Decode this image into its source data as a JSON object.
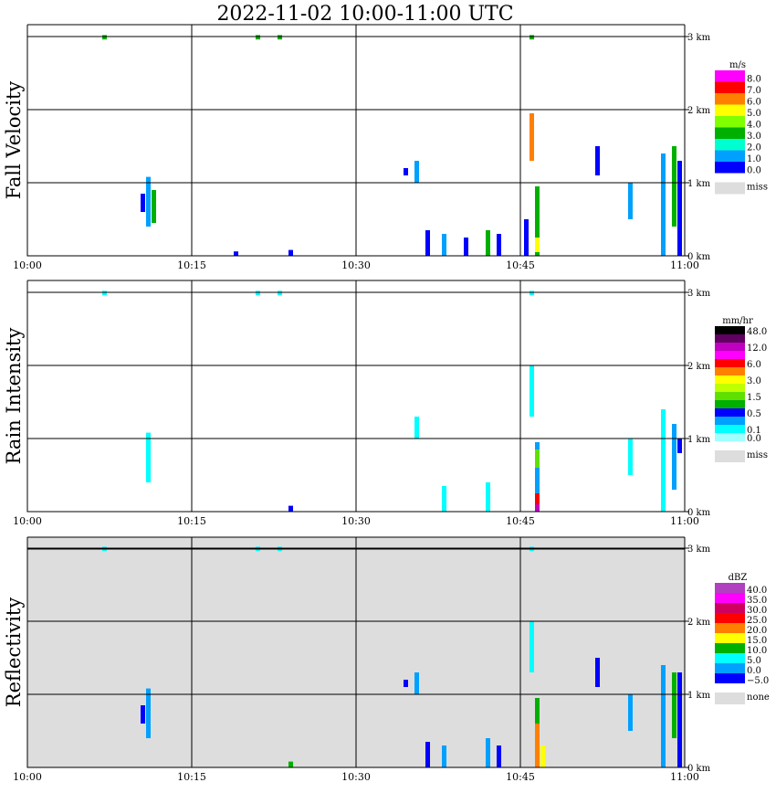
{
  "title": "2022-11-02   10:00-11:00 UTC",
  "colors": {
    "grid": "#000000",
    "missing": "#dddddd",
    "background": "#ffffff"
  },
  "chart_data": [
    {
      "type": "heatmap",
      "panel": "Fall Velocity",
      "ylabel": "Fall Velocity",
      "x_ticks": [
        "10:00",
        "10:15",
        "10:30",
        "10:45",
        "11:00"
      ],
      "y_ticks": [
        "0 km",
        "1 km",
        "2 km",
        "3 km"
      ],
      "xlim": [
        "10:00",
        "11:00"
      ],
      "ylim_km": [
        0,
        3.5
      ],
      "grid": true,
      "legend": {
        "unit": "m/s",
        "entries": [
          {
            "label": "8.0",
            "color": "#ff00ff"
          },
          {
            "label": "7.0",
            "color": "#ff0000"
          },
          {
            "label": "6.0",
            "color": "#ff8000"
          },
          {
            "label": "5.0",
            "color": "#ffff00"
          },
          {
            "label": "4.0",
            "color": "#80ff00"
          },
          {
            "label": "3.0",
            "color": "#00b000"
          },
          {
            "label": "2.0",
            "color": "#00ffd0"
          },
          {
            "label": "1.0",
            "color": "#00a0ff"
          },
          {
            "label": "0.0",
            "color": "#0000ff"
          }
        ],
        "missing_label": "miss"
      },
      "echoes": [
        {
          "time": "10:07",
          "top_km": 3.02,
          "bottom_km": 2.96,
          "color": "#00b000"
        },
        {
          "time": "10:21",
          "top_km": 3.02,
          "bottom_km": 2.96,
          "color": "#00b000"
        },
        {
          "time": "10:23",
          "top_km": 3.02,
          "bottom_km": 2.96,
          "color": "#00b000"
        },
        {
          "time": "10:46",
          "top_km": 3.02,
          "bottom_km": 2.96,
          "color": "#00b000"
        },
        {
          "time": "10:11",
          "top_km": 1.08,
          "bottom_km": 0.4,
          "color": "#00a0ff"
        },
        {
          "time": "10:11.5",
          "top_km": 0.9,
          "bottom_km": 0.45,
          "color": "#00b000"
        },
        {
          "time": "10:10.5",
          "top_km": 0.85,
          "bottom_km": 0.6,
          "color": "#0000ff"
        },
        {
          "time": "10:19",
          "top_km": 0.06,
          "bottom_km": 0.0,
          "color": "#0000ff"
        },
        {
          "time": "10:24",
          "top_km": 0.08,
          "bottom_km": 0.0,
          "color": "#0000ff"
        },
        {
          "time": "10:34.5",
          "top_km": 1.2,
          "bottom_km": 1.1,
          "color": "#0000ff"
        },
        {
          "time": "10:35.5",
          "top_km": 1.3,
          "bottom_km": 1.0,
          "color": "#00a0ff"
        },
        {
          "time": "10:36.5",
          "top_km": 0.35,
          "bottom_km": 0.0,
          "color": "#0000ff"
        },
        {
          "time": "10:38",
          "top_km": 0.3,
          "bottom_km": 0.0,
          "color": "#00a0ff"
        },
        {
          "time": "10:40",
          "top_km": 0.25,
          "bottom_km": 0.0,
          "color": "#0000ff"
        },
        {
          "time": "10:42",
          "top_km": 0.35,
          "bottom_km": 0.0,
          "color": "#00b000"
        },
        {
          "time": "10:43",
          "top_km": 0.3,
          "bottom_km": 0.0,
          "color": "#0000ff"
        },
        {
          "time": "10:45.5",
          "top_km": 0.5,
          "bottom_km": 0.0,
          "color": "#0000ff"
        },
        {
          "time": "10:46.5",
          "top_km": 0.95,
          "bottom_km": 0.0,
          "color": "#00b000"
        },
        {
          "time": "10:46.5",
          "top_km": 0.25,
          "bottom_km": 0.05,
          "color": "#ffff00"
        },
        {
          "time": "10:46",
          "top_km": 1.95,
          "bottom_km": 1.3,
          "color": "#ff8000"
        },
        {
          "time": "10:52",
          "top_km": 1.5,
          "bottom_km": 1.1,
          "color": "#0000ff"
        },
        {
          "time": "10:55",
          "top_km": 1.0,
          "bottom_km": 0.5,
          "color": "#00a0ff"
        },
        {
          "time": "10:58",
          "top_km": 1.4,
          "bottom_km": 0.0,
          "color": "#00a0ff"
        },
        {
          "time": "10:59",
          "top_km": 1.5,
          "bottom_km": 0.4,
          "color": "#00b000"
        },
        {
          "time": "10:59.5",
          "top_km": 1.3,
          "bottom_km": 0.0,
          "color": "#0000ff"
        }
      ]
    },
    {
      "type": "heatmap",
      "panel": "Rain Intensity",
      "ylabel": "Rain Intensity",
      "x_ticks": [
        "10:00",
        "10:15",
        "10:30",
        "10:45",
        "11:00"
      ],
      "y_ticks": [
        "0 km",
        "1 km",
        "2 km",
        "3 km"
      ],
      "xlim": [
        "10:00",
        "11:00"
      ],
      "ylim_km": [
        0,
        3.5
      ],
      "grid": true,
      "legend": {
        "unit": "mm/hr",
        "entries": [
          {
            "label": "48.0",
            "color": "#000000"
          },
          {
            "label": "",
            "color": "#600060"
          },
          {
            "label": "12.0",
            "color": "#c000c0"
          },
          {
            "label": "",
            "color": "#ff00ff"
          },
          {
            "label": "6.0",
            "color": "#ff0000"
          },
          {
            "label": "",
            "color": "#ff8000"
          },
          {
            "label": "3.0",
            "color": "#ffff00"
          },
          {
            "label": "",
            "color": "#c0ff00"
          },
          {
            "label": "1.5",
            "color": "#60e000"
          },
          {
            "label": "",
            "color": "#00b000"
          },
          {
            "label": "0.5",
            "color": "#0000ff"
          },
          {
            "label": "",
            "color": "#00a0ff"
          },
          {
            "label": "0.1",
            "color": "#00ffff"
          },
          {
            "label": "0.0",
            "color": "#a0ffff"
          }
        ],
        "missing_label": "miss"
      },
      "echoes": [
        {
          "time": "10:07",
          "top_km": 3.02,
          "bottom_km": 2.96,
          "color": "#00ffff"
        },
        {
          "time": "10:21",
          "top_km": 3.02,
          "bottom_km": 2.96,
          "color": "#00ffff"
        },
        {
          "time": "10:23",
          "top_km": 3.02,
          "bottom_km": 2.96,
          "color": "#00ffff"
        },
        {
          "time": "10:46",
          "top_km": 3.02,
          "bottom_km": 2.96,
          "color": "#00ffff"
        },
        {
          "time": "10:11",
          "top_km": 1.08,
          "bottom_km": 0.4,
          "color": "#00ffff"
        },
        {
          "time": "10:24",
          "top_km": 0.08,
          "bottom_km": 0.0,
          "color": "#0000ff"
        },
        {
          "time": "10:35.5",
          "top_km": 1.3,
          "bottom_km": 1.0,
          "color": "#00ffff"
        },
        {
          "time": "10:38",
          "top_km": 0.35,
          "bottom_km": 0.0,
          "color": "#00ffff"
        },
        {
          "time": "10:42",
          "top_km": 0.4,
          "bottom_km": 0.0,
          "color": "#00ffff"
        },
        {
          "time": "10:46",
          "top_km": 2.0,
          "bottom_km": 1.3,
          "color": "#00ffff"
        },
        {
          "time": "10:46.5",
          "top_km": 0.95,
          "bottom_km": 0.0,
          "color": "#00a0ff"
        },
        {
          "time": "10:46.5",
          "top_km": 0.85,
          "bottom_km": 0.6,
          "color": "#60e000"
        },
        {
          "time": "10:46.5",
          "top_km": 0.25,
          "bottom_km": 0.0,
          "color": "#ff0000"
        },
        {
          "time": "10:46.5",
          "top_km": 0.1,
          "bottom_km": 0.0,
          "color": "#c000c0"
        },
        {
          "time": "10:55",
          "top_km": 1.0,
          "bottom_km": 0.5,
          "color": "#00ffff"
        },
        {
          "time": "10:58",
          "top_km": 1.4,
          "bottom_km": 0.0,
          "color": "#00ffff"
        },
        {
          "time": "10:59",
          "top_km": 1.2,
          "bottom_km": 0.3,
          "color": "#00a0ff"
        },
        {
          "time": "10:59.5",
          "top_km": 1.0,
          "bottom_km": 0.8,
          "color": "#0000ff"
        }
      ]
    },
    {
      "type": "heatmap",
      "panel": "Reflectivity",
      "ylabel": "Reflectivity",
      "x_ticks": [
        "10:00",
        "10:15",
        "10:30",
        "10:45",
        "11:00"
      ],
      "y_ticks": [
        "0 km",
        "1 km",
        "2 km",
        "3 km"
      ],
      "xlim": [
        "10:00",
        "11:00"
      ],
      "ylim_km": [
        0,
        3.5
      ],
      "grid": true,
      "legend": {
        "unit": "dBZ",
        "entries": [
          {
            "label": "40.0",
            "color": "#b040c0"
          },
          {
            "label": "35.0",
            "color": "#ff00ff"
          },
          {
            "label": "30.0",
            "color": "#d00060"
          },
          {
            "label": "25.0",
            "color": "#ff0000"
          },
          {
            "label": "20.0",
            "color": "#ff8000"
          },
          {
            "label": "15.0",
            "color": "#ffff00"
          },
          {
            "label": "10.0",
            "color": "#00b000"
          },
          {
            "label": "5.0",
            "color": "#00ffff"
          },
          {
            "label": "0.0",
            "color": "#00a0ff"
          },
          {
            "label": "−5.0",
            "color": "#0000ff"
          }
        ],
        "missing_label": "none"
      },
      "echoes": [
        {
          "time": "10:07",
          "top_km": 3.02,
          "bottom_km": 2.96,
          "color": "#00ffff"
        },
        {
          "time": "10:21",
          "top_km": 3.02,
          "bottom_km": 2.96,
          "color": "#00ffff"
        },
        {
          "time": "10:23",
          "top_km": 3.02,
          "bottom_km": 2.96,
          "color": "#00ffff"
        },
        {
          "time": "10:46",
          "top_km": 3.02,
          "bottom_km": 2.96,
          "color": "#00ffff"
        },
        {
          "time": "10:11",
          "top_km": 1.08,
          "bottom_km": 0.4,
          "color": "#00a0ff"
        },
        {
          "time": "10:10.5",
          "top_km": 0.85,
          "bottom_km": 0.6,
          "color": "#0000ff"
        },
        {
          "time": "10:24",
          "top_km": 0.08,
          "bottom_km": 0.0,
          "color": "#00b000"
        },
        {
          "time": "10:34.5",
          "top_km": 1.2,
          "bottom_km": 1.1,
          "color": "#0000ff"
        },
        {
          "time": "10:35.5",
          "top_km": 1.3,
          "bottom_km": 1.0,
          "color": "#00a0ff"
        },
        {
          "time": "10:36.5",
          "top_km": 0.35,
          "bottom_km": 0.0,
          "color": "#0000ff"
        },
        {
          "time": "10:38",
          "top_km": 0.3,
          "bottom_km": 0.0,
          "color": "#00a0ff"
        },
        {
          "time": "10:42",
          "top_km": 0.4,
          "bottom_km": 0.0,
          "color": "#00a0ff"
        },
        {
          "time": "10:43",
          "top_km": 0.3,
          "bottom_km": 0.0,
          "color": "#0000ff"
        },
        {
          "time": "10:46",
          "top_km": 2.0,
          "bottom_km": 1.3,
          "color": "#00ffff"
        },
        {
          "time": "10:46.5",
          "top_km": 0.95,
          "bottom_km": 0.0,
          "color": "#00b000"
        },
        {
          "time": "10:46.5",
          "top_km": 0.6,
          "bottom_km": 0.0,
          "color": "#ff8000"
        },
        {
          "time": "10:47",
          "top_km": 0.3,
          "bottom_km": 0.0,
          "color": "#ffff00"
        },
        {
          "time": "10:52",
          "top_km": 1.5,
          "bottom_km": 1.1,
          "color": "#0000ff"
        },
        {
          "time": "10:55",
          "top_km": 1.0,
          "bottom_km": 0.5,
          "color": "#00a0ff"
        },
        {
          "time": "10:58",
          "top_km": 1.4,
          "bottom_km": 0.0,
          "color": "#00a0ff"
        },
        {
          "time": "10:59",
          "top_km": 1.3,
          "bottom_km": 0.4,
          "color": "#00b000"
        },
        {
          "time": "10:59.5",
          "top_km": 1.3,
          "bottom_km": 0.0,
          "color": "#0000ff"
        }
      ]
    }
  ]
}
